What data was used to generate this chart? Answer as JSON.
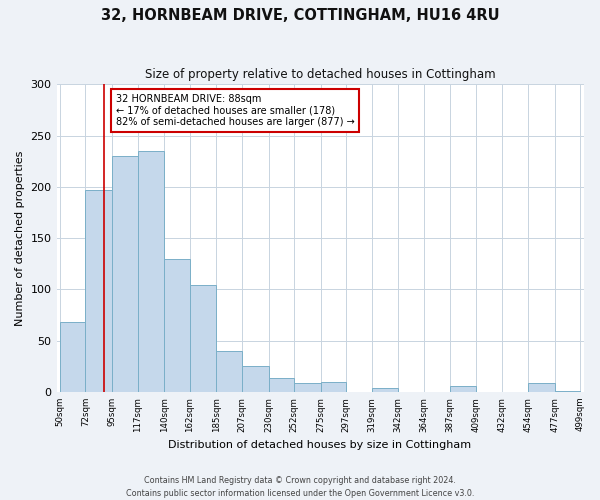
{
  "title": "32, HORNBEAM DRIVE, COTTINGHAM, HU16 4RU",
  "subtitle": "Size of property relative to detached houses in Cottingham",
  "xlabel": "Distribution of detached houses by size in Cottingham",
  "ylabel": "Number of detached properties",
  "bin_edges": [
    50,
    72,
    95,
    117,
    140,
    162,
    185,
    207,
    230,
    252,
    275,
    297,
    319,
    342,
    364,
    387,
    409,
    432,
    454,
    477,
    499
  ],
  "bar_heights": [
    68,
    197,
    230,
    235,
    130,
    104,
    40,
    25,
    14,
    9,
    10,
    0,
    4,
    0,
    0,
    6,
    0,
    0,
    9,
    1
  ],
  "bar_color": "#c5d8eb",
  "bar_edge_color": "#7aafc8",
  "property_value": 88,
  "red_line_color": "#cc0000",
  "annotation_text": "32 HORNBEAM DRIVE: 88sqm\n← 17% of detached houses are smaller (178)\n82% of semi-detached houses are larger (877) →",
  "annotation_box_color": "#ffffff",
  "annotation_box_edge_color": "#cc0000",
  "ylim": [
    0,
    300
  ],
  "yticks": [
    0,
    50,
    100,
    150,
    200,
    250,
    300
  ],
  "tick_labels": [
    "50sqm",
    "72sqm",
    "95sqm",
    "117sqm",
    "140sqm",
    "162sqm",
    "185sqm",
    "207sqm",
    "230sqm",
    "252sqm",
    "275sqm",
    "297sqm",
    "319sqm",
    "342sqm",
    "364sqm",
    "387sqm",
    "409sqm",
    "432sqm",
    "454sqm",
    "477sqm",
    "499sqm"
  ],
  "footer_line1": "Contains HM Land Registry data © Crown copyright and database right 2024.",
  "footer_line2": "Contains public sector information licensed under the Open Government Licence v3.0.",
  "background_color": "#eef2f7",
  "plot_background_color": "#ffffff",
  "grid_color": "#c8d4e0"
}
